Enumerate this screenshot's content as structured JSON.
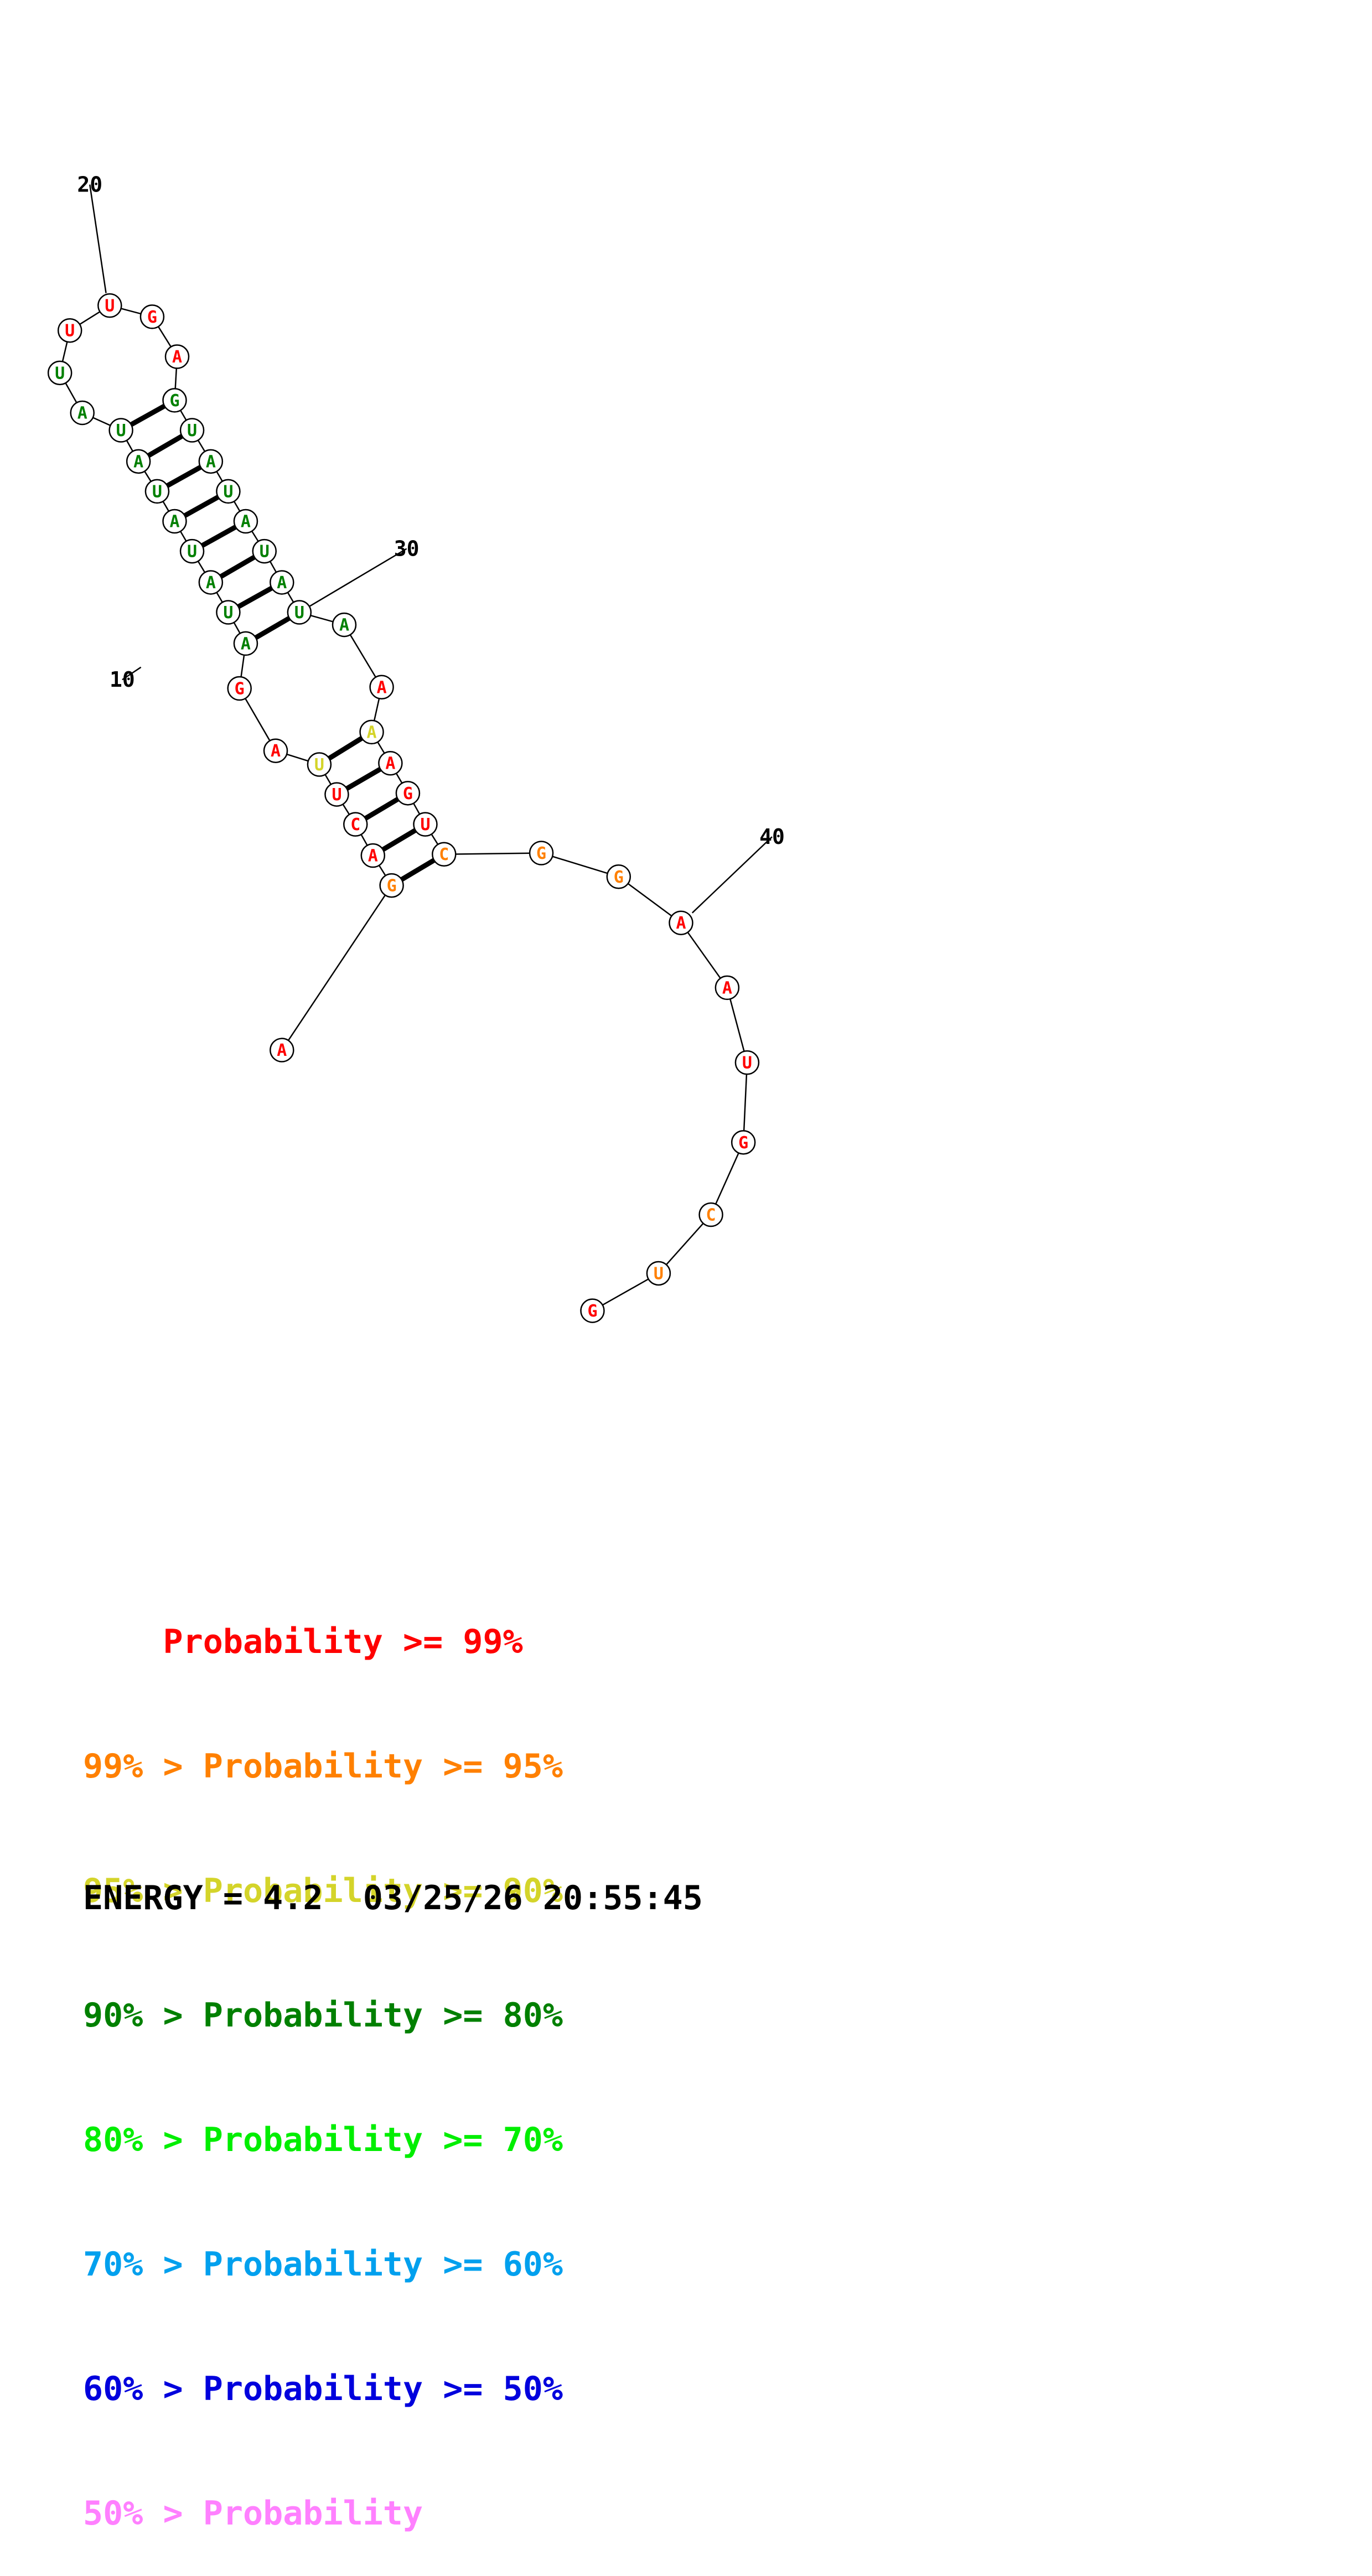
{
  "colors": {
    "p99": "#ff0000",
    "p95": "#ff8000",
    "p90": "#d4d42a",
    "p80": "#008000",
    "p70": "#00ee00",
    "p60": "#00a0ee",
    "p50": "#0000dd",
    "plow": "#ff80ff"
  },
  "structure": {
    "nucleotides": [
      {
        "base": "A",
        "color": "p99"
      },
      {
        "base": "G",
        "color": "p95"
      },
      {
        "base": "A",
        "color": "p99"
      },
      {
        "base": "C",
        "color": "p99"
      },
      {
        "base": "U",
        "color": "p99"
      },
      {
        "base": "U",
        "color": "p90"
      },
      {
        "base": "A",
        "color": "p99"
      },
      {
        "base": "G",
        "color": "p99"
      },
      {
        "base": "A",
        "color": "p80"
      },
      {
        "base": "U",
        "color": "p80"
      },
      {
        "base": "A",
        "color": "p80"
      },
      {
        "base": "U",
        "color": "p80"
      },
      {
        "base": "A",
        "color": "p80"
      },
      {
        "base": "U",
        "color": "p80"
      },
      {
        "base": "A",
        "color": "p80"
      },
      {
        "base": "U",
        "color": "p80"
      },
      {
        "base": "A",
        "color": "p80"
      },
      {
        "base": "U",
        "color": "p80"
      },
      {
        "base": "U",
        "color": "p99"
      },
      {
        "base": "U",
        "color": "p99"
      },
      {
        "base": "G",
        "color": "p99"
      },
      {
        "base": "A",
        "color": "p99"
      },
      {
        "base": "G",
        "color": "p80"
      },
      {
        "base": "U",
        "color": "p80"
      },
      {
        "base": "A",
        "color": "p80"
      },
      {
        "base": "U",
        "color": "p80"
      },
      {
        "base": "A",
        "color": "p80"
      },
      {
        "base": "U",
        "color": "p80"
      },
      {
        "base": "A",
        "color": "p80"
      },
      {
        "base": "U",
        "color": "p80"
      },
      {
        "base": "A",
        "color": "p80"
      },
      {
        "base": "A",
        "color": "p99"
      },
      {
        "base": "A",
        "color": "p90"
      },
      {
        "base": "A",
        "color": "p99"
      },
      {
        "base": "G",
        "color": "p99"
      },
      {
        "base": "U",
        "color": "p99"
      },
      {
        "base": "C",
        "color": "p95"
      },
      {
        "base": "G",
        "color": "p95"
      },
      {
        "base": "G",
        "color": "p95"
      },
      {
        "base": "A",
        "color": "p99"
      },
      {
        "base": "A",
        "color": "p99"
      },
      {
        "base": "U",
        "color": "p99"
      },
      {
        "base": "G",
        "color": "p99"
      },
      {
        "base": "C",
        "color": "p95"
      },
      {
        "base": "U",
        "color": "p95"
      },
      {
        "base": "G",
        "color": "p99"
      }
    ],
    "pairs": [
      [
        2,
        37
      ],
      [
        3,
        36
      ],
      [
        4,
        35
      ],
      [
        5,
        34
      ],
      [
        6,
        33
      ],
      [
        9,
        30
      ],
      [
        10,
        29
      ],
      [
        11,
        28
      ],
      [
        12,
        27
      ],
      [
        13,
        26
      ],
      [
        14,
        25
      ],
      [
        15,
        24
      ],
      [
        16,
        23
      ]
    ],
    "position_labels": [
      {
        "index": 10,
        "text": "10"
      },
      {
        "index": 20,
        "text": "20"
      },
      {
        "index": 30,
        "text": "30"
      },
      {
        "index": 40,
        "text": "40"
      }
    ]
  },
  "legend": [
    {
      "prefix": "    ",
      "prefix_color": "p99",
      "text": "Probability >= 99%",
      "color": "p99"
    },
    {
      "prefix": "99% > ",
      "prefix_color": "p95",
      "text": "Probability >= 95%",
      "color": "p95"
    },
    {
      "prefix": "95% > ",
      "prefix_color": "p90",
      "text": "Probability >= 90%",
      "color": "p90"
    },
    {
      "prefix": "90% > ",
      "prefix_color": "p80",
      "text": "Probability >= 80%",
      "color": "p80"
    },
    {
      "prefix": "80% > ",
      "prefix_color": "p70",
      "text": "Probability >= 70%",
      "color": "p70"
    },
    {
      "prefix": "70% > ",
      "prefix_color": "p60",
      "text": "Probability >= 60%",
      "color": "p60"
    },
    {
      "prefix": "60% > ",
      "prefix_color": "p50",
      "text": "Probability >= 50%",
      "color": "p50"
    },
    {
      "prefix": "50% > ",
      "prefix_color": "plow",
      "text": "Probability",
      "color": "plow"
    }
  ],
  "footer": {
    "energy": "ENERGY = 4.2  03/25/26 20:55:45"
  }
}
